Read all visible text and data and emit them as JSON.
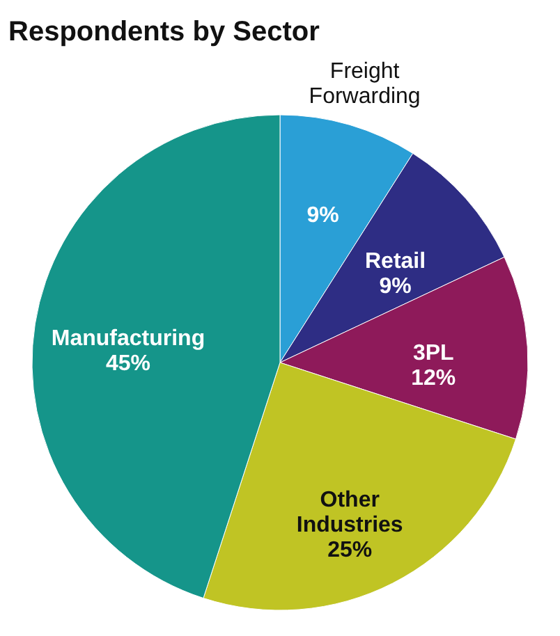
{
  "chart_data": {
    "type": "pie",
    "title": "Respondents by Sector",
    "categories": [
      "Freight Forwarding",
      "Retail",
      "3PL",
      "Other Industries",
      "Manufacturing"
    ],
    "values": [
      9,
      9,
      12,
      25,
      45
    ],
    "value_labels": [
      "9%",
      "9%",
      "12%",
      "25%",
      "45%"
    ],
    "colors": [
      "#2a9fd6",
      "#2e2d84",
      "#8e1a5a",
      "#c0c424",
      "#15958a"
    ],
    "legend": false
  }
}
